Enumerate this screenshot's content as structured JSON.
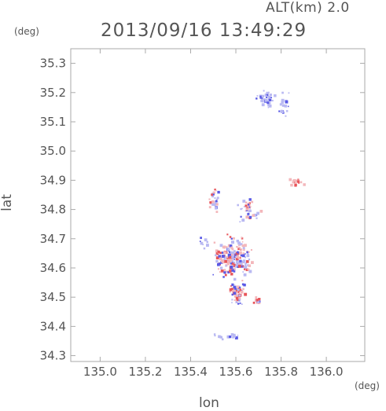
{
  "header": {
    "altitude_label": "ALT(km) 2.0",
    "timestamp": "2013/09/16 13:49:29"
  },
  "axes": {
    "y_unit": "(deg)",
    "x_unit": "(deg)",
    "ylabel": "lat",
    "xlabel": "lon",
    "xlim": [
      134.87,
      136.17
    ],
    "ylim": [
      34.28,
      35.35
    ],
    "x_ticks": [
      135.0,
      135.2,
      135.4,
      135.6,
      135.8,
      136.0
    ],
    "x_tick_labels": [
      "135.0",
      "135.2",
      "135.4",
      "135.6",
      "135.8",
      "136.0"
    ],
    "y_ticks": [
      34.3,
      34.4,
      34.5,
      34.6,
      34.7,
      34.8,
      34.9,
      35.0,
      35.1,
      35.2,
      35.3
    ],
    "y_tick_labels": [
      "34.3",
      "34.4",
      "34.5",
      "34.6",
      "34.7",
      "34.8",
      "34.9",
      "35.0",
      "35.1",
      "35.2",
      "35.3"
    ]
  },
  "colors": {
    "axis": "#aaaaaa",
    "positive": "#e8555a",
    "negative": "#5a5ae6",
    "positive_light": "#f3b7bb",
    "negative_light": "#b9b9f2"
  },
  "chart_data": {
    "type": "heatmap",
    "x_unit": "deg lon",
    "y_unit": "deg lat",
    "clusters": [
      {
        "lon": 135.73,
        "lat": 35.18,
        "spread_lon": 0.035,
        "spread_lat": 0.025,
        "count": 40,
        "sign": "negative"
      },
      {
        "lon": 135.81,
        "lat": 35.16,
        "spread_lon": 0.02,
        "spread_lat": 0.04,
        "count": 18,
        "sign": "negative"
      },
      {
        "lon": 135.86,
        "lat": 34.895,
        "spread_lon": 0.025,
        "spread_lat": 0.012,
        "count": 18,
        "sign": "positive"
      },
      {
        "lon": 135.5,
        "lat": 34.84,
        "spread_lon": 0.025,
        "spread_lat": 0.035,
        "count": 30,
        "sign": "mixed"
      },
      {
        "lon": 135.65,
        "lat": 34.8,
        "spread_lon": 0.04,
        "spread_lat": 0.03,
        "count": 40,
        "sign": "mixed"
      },
      {
        "lon": 135.58,
        "lat": 34.64,
        "spread_lon": 0.07,
        "spread_lat": 0.06,
        "count": 200,
        "sign": "mixed"
      },
      {
        "lon": 135.6,
        "lat": 34.52,
        "spread_lon": 0.03,
        "spread_lat": 0.04,
        "count": 60,
        "sign": "mixed"
      },
      {
        "lon": 135.69,
        "lat": 34.49,
        "spread_lon": 0.015,
        "spread_lat": 0.01,
        "count": 10,
        "sign": "mixed"
      },
      {
        "lon": 135.56,
        "lat": 34.37,
        "spread_lon": 0.06,
        "spread_lat": 0.015,
        "count": 16,
        "sign": "negative"
      },
      {
        "lon": 135.46,
        "lat": 34.69,
        "spread_lon": 0.02,
        "spread_lat": 0.02,
        "count": 8,
        "sign": "negative"
      }
    ]
  }
}
